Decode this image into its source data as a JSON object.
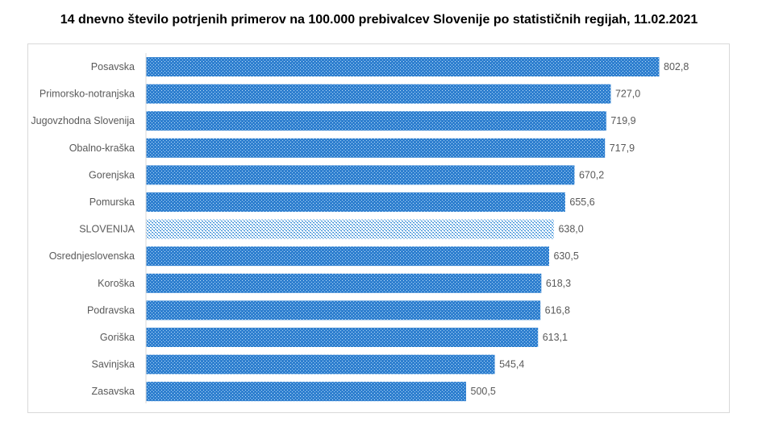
{
  "chart_data": {
    "type": "bar",
    "orientation": "horizontal",
    "title": "14 dnevno število potrjenih primerov na 100.000 prebivalcev Slovenije po statističnih regijah, 11.02.2021",
    "xlabel": "",
    "ylabel": "",
    "xlim": [
      0,
      802.8
    ],
    "grid": false,
    "categories": [
      "Posavska",
      "Primorsko-notranjska",
      "Jugovzhodna Slovenija",
      "Obalno-kraška",
      "Gorenjska",
      "Pomurska",
      "SLOVENIJA",
      "Osrednjeslovenska",
      "Koroška",
      "Podravska",
      "Goriška",
      "Savinjska",
      "Zasavska"
    ],
    "values": [
      802.8,
      727.0,
      719.9,
      717.9,
      670.2,
      655.6,
      638.0,
      630.5,
      618.3,
      616.8,
      613.1,
      545.4,
      500.5
    ],
    "value_labels": [
      "802,8",
      "727,0",
      "719,9",
      "717,9",
      "670,2",
      "655,6",
      "638,0",
      "630,5",
      "618,3",
      "616,8",
      "613,1",
      "545,4",
      "500,5"
    ],
    "highlight_category": "SLOVENIJA",
    "colors": {
      "bar": "#2f7fcf",
      "bar_highlight": "#7fb8e8",
      "pattern_dot": "#ffffff"
    }
  }
}
